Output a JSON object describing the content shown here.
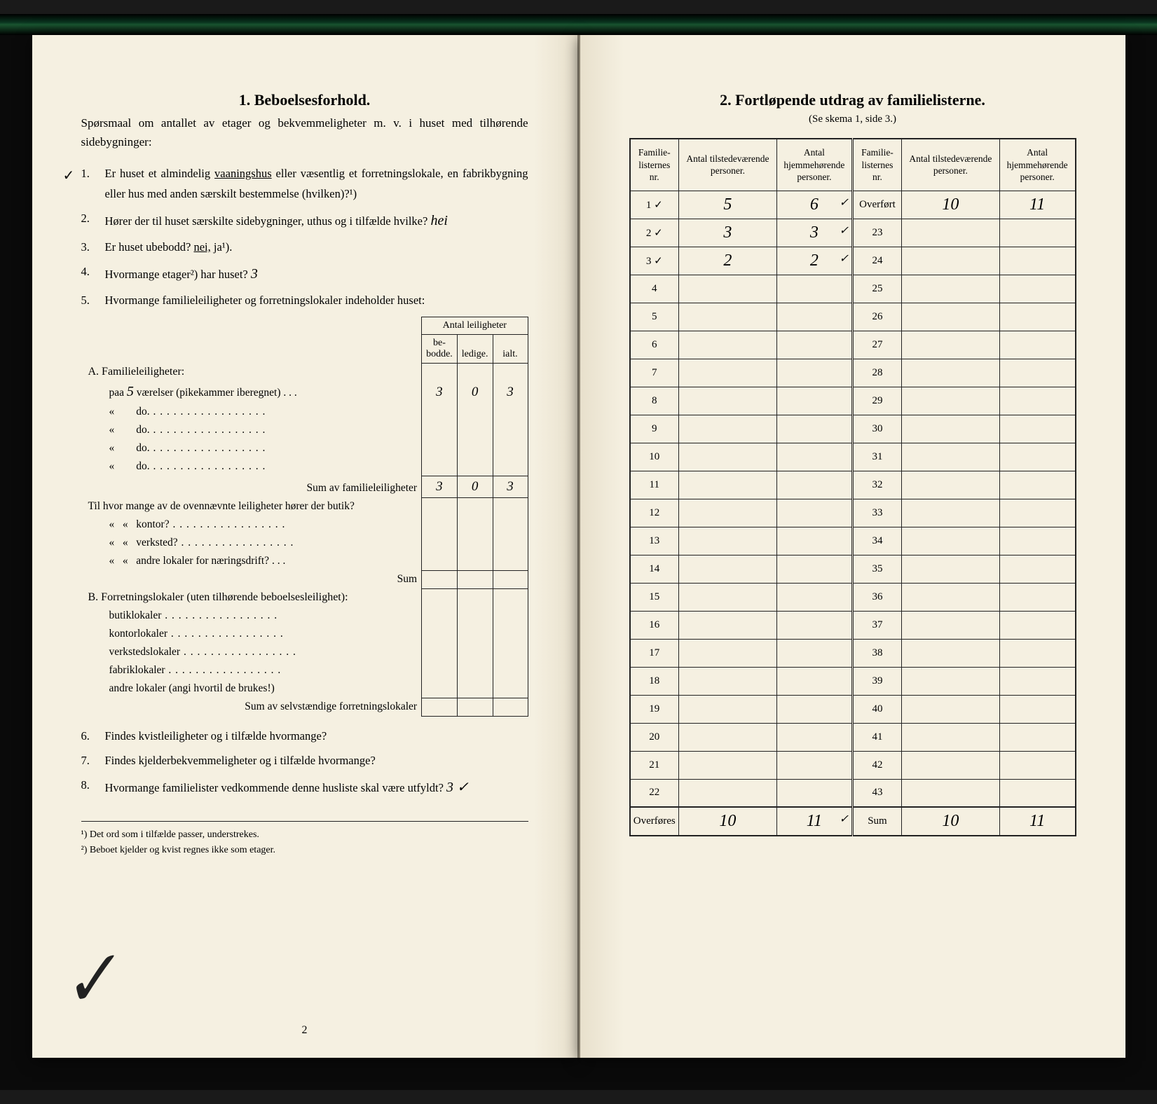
{
  "left": {
    "heading": "1.   Beboelsesforhold.",
    "intro": "Spørsmaal om antallet av etager og bekvemmeligheter m. v. i huset med tilhørende sidebygninger:",
    "q1_prefix": "Er huset et almindelig ",
    "q1_under": "vaaningshus",
    "q1_rest": " eller væsentlig et forretningslokale, en fabrikbygning eller hus med anden særskilt bestemmelse (hvilken)?¹)",
    "q2": "Hører der til huset særskilte sidebygninger, uthus og i tilfælde hvilke?",
    "q2_hand": "hei",
    "q3_prefix": "Er huset ubebodd?  ",
    "q3_under": "nei,",
    "q3_rest": "  ja¹).",
    "q4": "Hvormange etager²) har huset?",
    "q4_hand": "3",
    "q5": "Hvormange familieleiligheter og forretningslokaler indeholder huset:",
    "табHead": {
      "top": "Antal leiligheter",
      "c1": "be-\nbodde.",
      "c2": "ledige.",
      "c3": "ialt."
    },
    "secA": "A. Familieleiligheter:",
    "rowA1_pre": "paa ",
    "rowA1_hand": "5",
    "rowA1_post": " værelser (pikekammer iberegnet)",
    "rowA1_v1": "3",
    "rowA1_v2": "0",
    "rowA1_v3": "3",
    "rowDo": "do.",
    "sumFam": "Sum av familieleiligheter",
    "sumFam_v1": "3",
    "sumFam_v2": "0",
    "sumFam_v3": "3",
    "tilHvor": "Til hvor mange av de ovennævnte leiligheter hører der butik?",
    "kontor": "kontor?",
    "verksted": "verksted?",
    "andreNaering": "andre lokaler for næringsdrift?",
    "sum": "Sum",
    "secB": "B. Forretningslokaler (uten tilhørende beboelsesleilighet):",
    "butik": "butiklokaler",
    "kontorL": "kontorlokaler",
    "verkstedL": "verkstedslokaler",
    "fabrik": "fabriklokaler",
    "andreLok": "andre lokaler (angi hvortil de brukes!)",
    "sumForr": "Sum av selvstændige forretningslokaler",
    "q6": "Findes kvistleiligheter og i tilfælde hvormange?",
    "q7": "Findes kjelderbekvemmeligheter og i tilfælde hvormange?",
    "q8": "Hvormange familielister vedkommende denne husliste skal være utfyldt?",
    "q8_hand": "3 ✓",
    "fn1": "¹)  Det ord som i tilfælde passer, understrekes.",
    "fn2": "²)  Beboet kjelder og kvist regnes ikke som etager.",
    "pageNum": "2"
  },
  "right": {
    "heading": "2.   Fortløpende utdrag av familielisterne.",
    "subheading": "(Se skema 1, side 3.)",
    "cols": {
      "c1": "Familie-\nlisternes\nnr.",
      "c2": "Antal\ntilstedeværende\npersoner.",
      "c3": "Antal\nhjemmehørende\npersoner."
    },
    "overfort": "Overført",
    "overfort_v1": "10",
    "overfort_v2": "11",
    "rowsL": [
      {
        "n": "1",
        "v1": "5",
        "v2": "6",
        "ck": true
      },
      {
        "n": "2",
        "v1": "3",
        "v2": "3",
        "ck": true
      },
      {
        "n": "3",
        "v1": "2",
        "v2": "2",
        "ck": true
      },
      {
        "n": "4",
        "v1": "",
        "v2": ""
      },
      {
        "n": "5",
        "v1": "",
        "v2": ""
      },
      {
        "n": "6",
        "v1": "",
        "v2": ""
      },
      {
        "n": "7",
        "v1": "",
        "v2": ""
      },
      {
        "n": "8",
        "v1": "",
        "v2": ""
      },
      {
        "n": "9",
        "v1": "",
        "v2": ""
      },
      {
        "n": "10",
        "v1": "",
        "v2": ""
      },
      {
        "n": "11",
        "v1": "",
        "v2": ""
      },
      {
        "n": "12",
        "v1": "",
        "v2": ""
      },
      {
        "n": "13",
        "v1": "",
        "v2": ""
      },
      {
        "n": "14",
        "v1": "",
        "v2": ""
      },
      {
        "n": "15",
        "v1": "",
        "v2": ""
      },
      {
        "n": "16",
        "v1": "",
        "v2": ""
      },
      {
        "n": "17",
        "v1": "",
        "v2": ""
      },
      {
        "n": "18",
        "v1": "",
        "v2": ""
      },
      {
        "n": "19",
        "v1": "",
        "v2": ""
      },
      {
        "n": "20",
        "v1": "",
        "v2": ""
      },
      {
        "n": "21",
        "v1": "",
        "v2": ""
      },
      {
        "n": "22",
        "v1": "",
        "v2": ""
      }
    ],
    "rowsR": [
      "23",
      "24",
      "25",
      "26",
      "27",
      "28",
      "29",
      "30",
      "31",
      "32",
      "33",
      "34",
      "35",
      "36",
      "37",
      "38",
      "39",
      "40",
      "41",
      "42",
      "43"
    ],
    "overfores": "Overføres",
    "overfores_v1": "10",
    "overfores_v2": "11",
    "sumLabel": "Sum",
    "sum_v1": "10",
    "sum_v2": "11"
  }
}
